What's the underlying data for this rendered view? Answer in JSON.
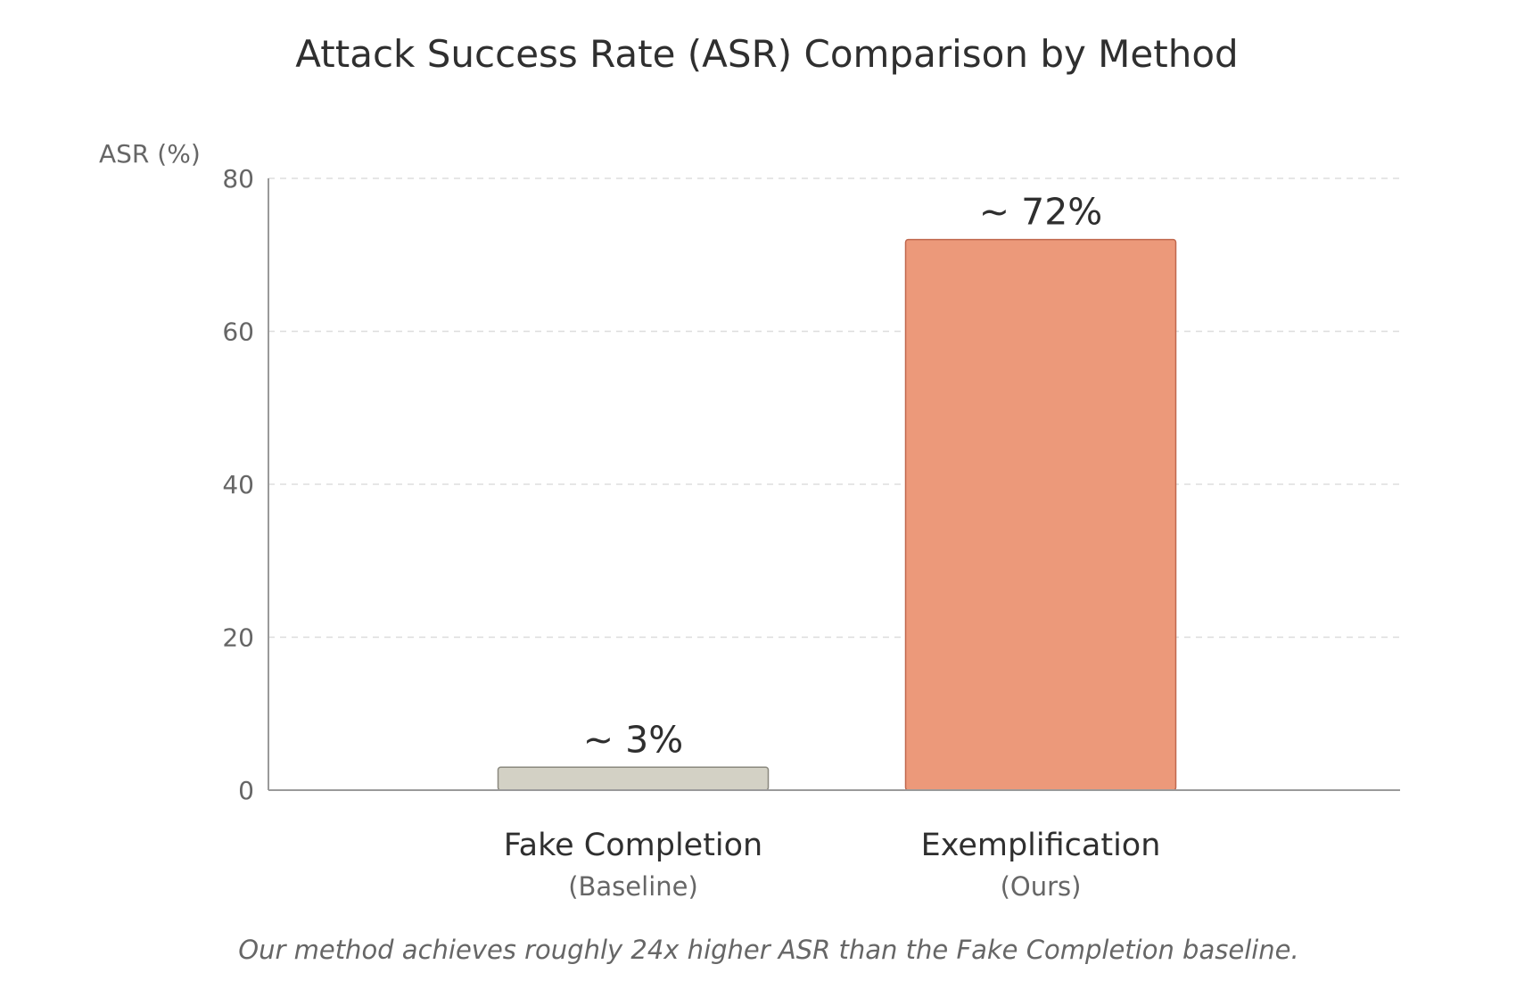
{
  "chart_data": {
    "type": "bar",
    "title": "Attack Success Rate (ASR) Comparison by Method",
    "xlabel": "",
    "ylabel": "ASR (%)",
    "ylim": [
      0,
      80
    ],
    "yticks": [
      0,
      20,
      40,
      60,
      80
    ],
    "grid": "horizontal dashed",
    "categories": [
      "Fake Completion",
      "Exemplification"
    ],
    "category_sublabels": [
      "(Baseline)",
      "(Ours)"
    ],
    "values": [
      3,
      72
    ],
    "data_labels": [
      "~ 3%",
      "~ 72%"
    ],
    "bar_colors": [
      "#d3d1c5",
      "#ec997a"
    ],
    "bar_edge_colors": [
      "#8a887e",
      "#c0684e"
    ],
    "caption": "Our method achieves roughly 24x higher ASR than the Fake Completion baseline."
  }
}
